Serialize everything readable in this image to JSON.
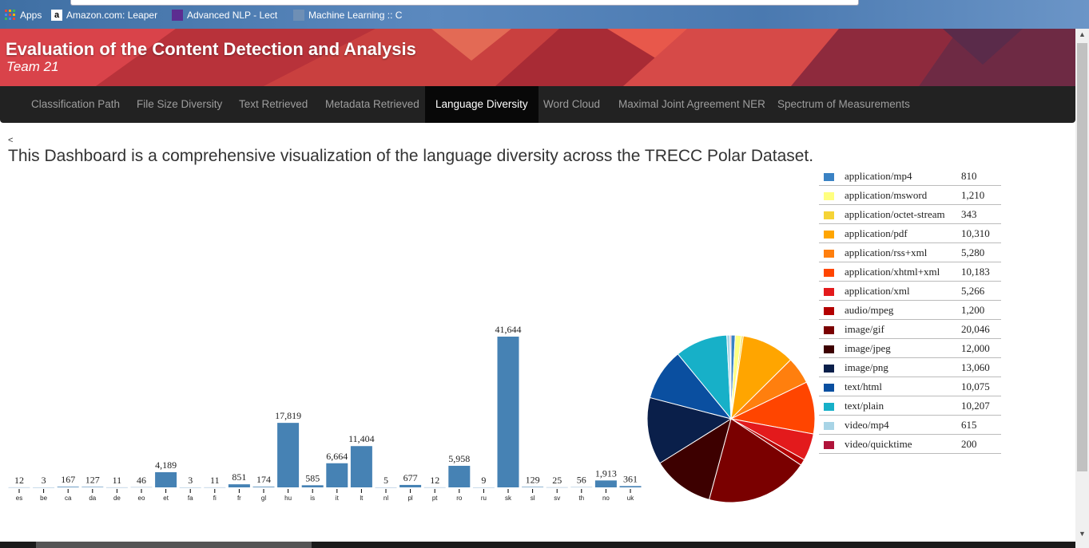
{
  "browser": {
    "bookmarks": [
      {
        "label": "Apps",
        "icon": "apps-grid-icon",
        "color": "#e8453c"
      },
      {
        "label": "Amazon.com: Leaper",
        "icon": "amazon-icon",
        "color": "#ffffff"
      },
      {
        "label": "Advanced NLP - Lect",
        "icon": "nlp-icon",
        "color": "#5c2d91"
      },
      {
        "label": "Machine Learning :: C",
        "icon": "page-icon",
        "color": "#6e8fb5"
      }
    ]
  },
  "header": {
    "title": "Evaluation of the Content Detection and Analysis",
    "subtitle": "Team 21"
  },
  "nav": {
    "tabs": [
      {
        "label": "Classification Path"
      },
      {
        "label": "File Size Diversity"
      },
      {
        "label": "Text Retrieved"
      },
      {
        "label": "Metadata Retrieved"
      },
      {
        "label": "Language Diversity",
        "active": true
      },
      {
        "label": "Word Cloud"
      },
      {
        "label": "Maximal Joint Agreement NER"
      },
      {
        "label": "Spectrum of Measurements"
      }
    ]
  },
  "main": {
    "back_link": "<",
    "description": "This Dashboard is a comprehensive visualization of the language diversity across the TRECC Polar Dataset."
  },
  "chart_data": [
    {
      "type": "bar",
      "title": "",
      "xlabel": "",
      "ylabel": "",
      "bar_color": "#4682b4",
      "ylim": [
        0,
        41644
      ],
      "categories": [
        "es",
        "be",
        "ca",
        "da",
        "de",
        "eo",
        "et",
        "fa",
        "fi",
        "fr",
        "gl",
        "hu",
        "is",
        "it",
        "lt",
        "nl",
        "pl",
        "pt",
        "ro",
        "ru",
        "sk",
        "sl",
        "sv",
        "th",
        "no",
        "uk"
      ],
      "values": [
        12,
        3,
        167,
        127,
        11,
        46,
        4189,
        3,
        11,
        851,
        174,
        17819,
        585,
        6664,
        11404,
        5,
        677,
        12,
        5958,
        9,
        41644,
        129,
        25,
        56,
        1913,
        361
      ],
      "value_labels": [
        "12",
        "3",
        "167",
        "127",
        "11",
        "46",
        "4,189",
        "3",
        "11",
        "851",
        "174",
        "17,819",
        "585",
        "6,664",
        "11,404",
        "5",
        "677",
        "12",
        "5,958",
        "9",
        "41,644",
        "129",
        "25",
        "56",
        "1,913",
        "361"
      ]
    },
    {
      "type": "pie",
      "title": "",
      "slices": [
        {
          "label": "application/mp4",
          "value": 810,
          "display": "810",
          "color": "#3a82c4"
        },
        {
          "label": "application/msword",
          "value": 1210,
          "display": "1,210",
          "color": "#ffff80"
        },
        {
          "label": "application/octet-stream",
          "value": 343,
          "display": "343",
          "color": "#f5d336"
        },
        {
          "label": "application/pdf",
          "value": 10310,
          "display": "10,310",
          "color": "#ffa500"
        },
        {
          "label": "application/rss+xml",
          "value": 5280,
          "display": "5,280",
          "color": "#ff7f0e"
        },
        {
          "label": "application/xhtml+xml",
          "value": 10183,
          "display": "10,183",
          "color": "#ff4500"
        },
        {
          "label": "application/xml",
          "value": 5266,
          "display": "5,266",
          "color": "#e31a1c"
        },
        {
          "label": "audio/mpeg",
          "value": 1200,
          "display": "1,200",
          "color": "#b30000"
        },
        {
          "label": "image/gif",
          "value": 20046,
          "display": "20,046",
          "color": "#7a0000"
        },
        {
          "label": "image/jpeg",
          "value": 12000,
          "display": "12,000",
          "color": "#3d0000"
        },
        {
          "label": "image/png",
          "value": 13060,
          "display": "13,060",
          "color": "#0a1f4a"
        },
        {
          "label": "text/html",
          "value": 10075,
          "display": "10,075",
          "color": "#0a4fa0"
        },
        {
          "label": "text/plain",
          "value": 10207,
          "display": "10,207",
          "color": "#17b0c8"
        },
        {
          "label": "video/mp4",
          "value": 615,
          "display": "615",
          "color": "#a8d4e6"
        },
        {
          "label": "video/quicktime",
          "value": 200,
          "display": "200",
          "color": "#b0133a"
        }
      ]
    }
  ]
}
